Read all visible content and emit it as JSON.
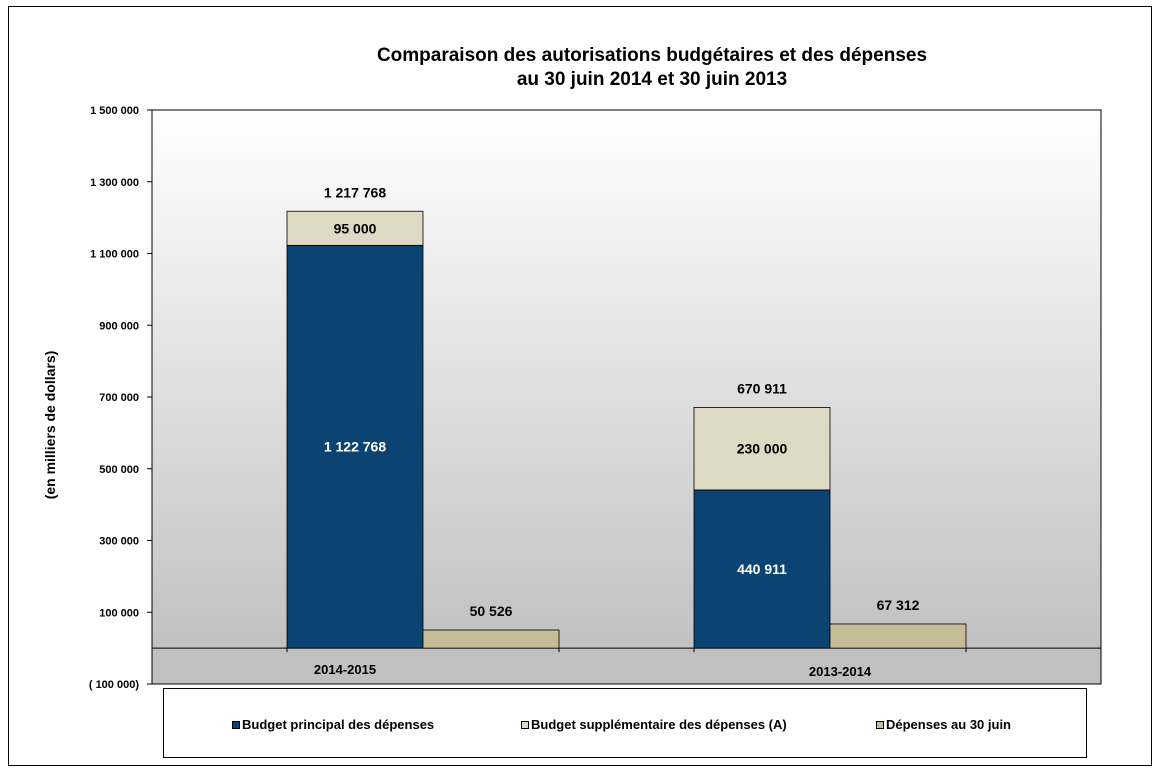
{
  "title_line1": "Comparaison des autorisations budgétaires et des dépenses",
  "title_line2": "au 30 juin 2014 et 30 juin 2013",
  "colors": {
    "budget_principal": "#0b4473",
    "budget_supplementaire": "#ddd9c3",
    "depenses": "#c4bd97"
  },
  "chart_data": {
    "type": "bar",
    "stacked": true,
    "title": "Comparaison des autorisations budgétaires et des dépenses au 30 juin 2014 et 30 juin 2013",
    "xlabel": "",
    "ylabel": "(en milliers  de dollars)",
    "ylim": [
      -100000,
      1500000
    ],
    "yticks": [
      -100000,
      100000,
      300000,
      500000,
      700000,
      900000,
      1100000,
      1300000,
      1500000
    ],
    "ytick_labels": [
      "( 100 000)",
      "100 000",
      "300 000",
      "500 000",
      "700 000",
      "900 000",
      "1 100 000",
      "1 300 000",
      "1 500 000"
    ],
    "categories": [
      "2014-2015",
      "2013-2014"
    ],
    "series": [
      {
        "name": "Budget principal des dépenses",
        "values": [
          1122768,
          440911
        ],
        "labels": [
          "1 122 768",
          "440 911"
        ],
        "stack": "autorisations"
      },
      {
        "name": "Budget supplémentaire des dépenses (A)",
        "values": [
          95000,
          230000
        ],
        "labels": [
          "95 000",
          "230 000"
        ],
        "stack": "autorisations"
      },
      {
        "name": "Dépenses au 30 juin",
        "values": [
          50526,
          67312
        ],
        "labels": [
          "50 526",
          "67 312"
        ],
        "stack": "depenses"
      }
    ],
    "totals": [
      {
        "value": 1217768,
        "label": "1 217 768"
      },
      {
        "value": 670911,
        "label": "670 911"
      }
    ],
    "grid": false,
    "legend_position": "bottom"
  }
}
